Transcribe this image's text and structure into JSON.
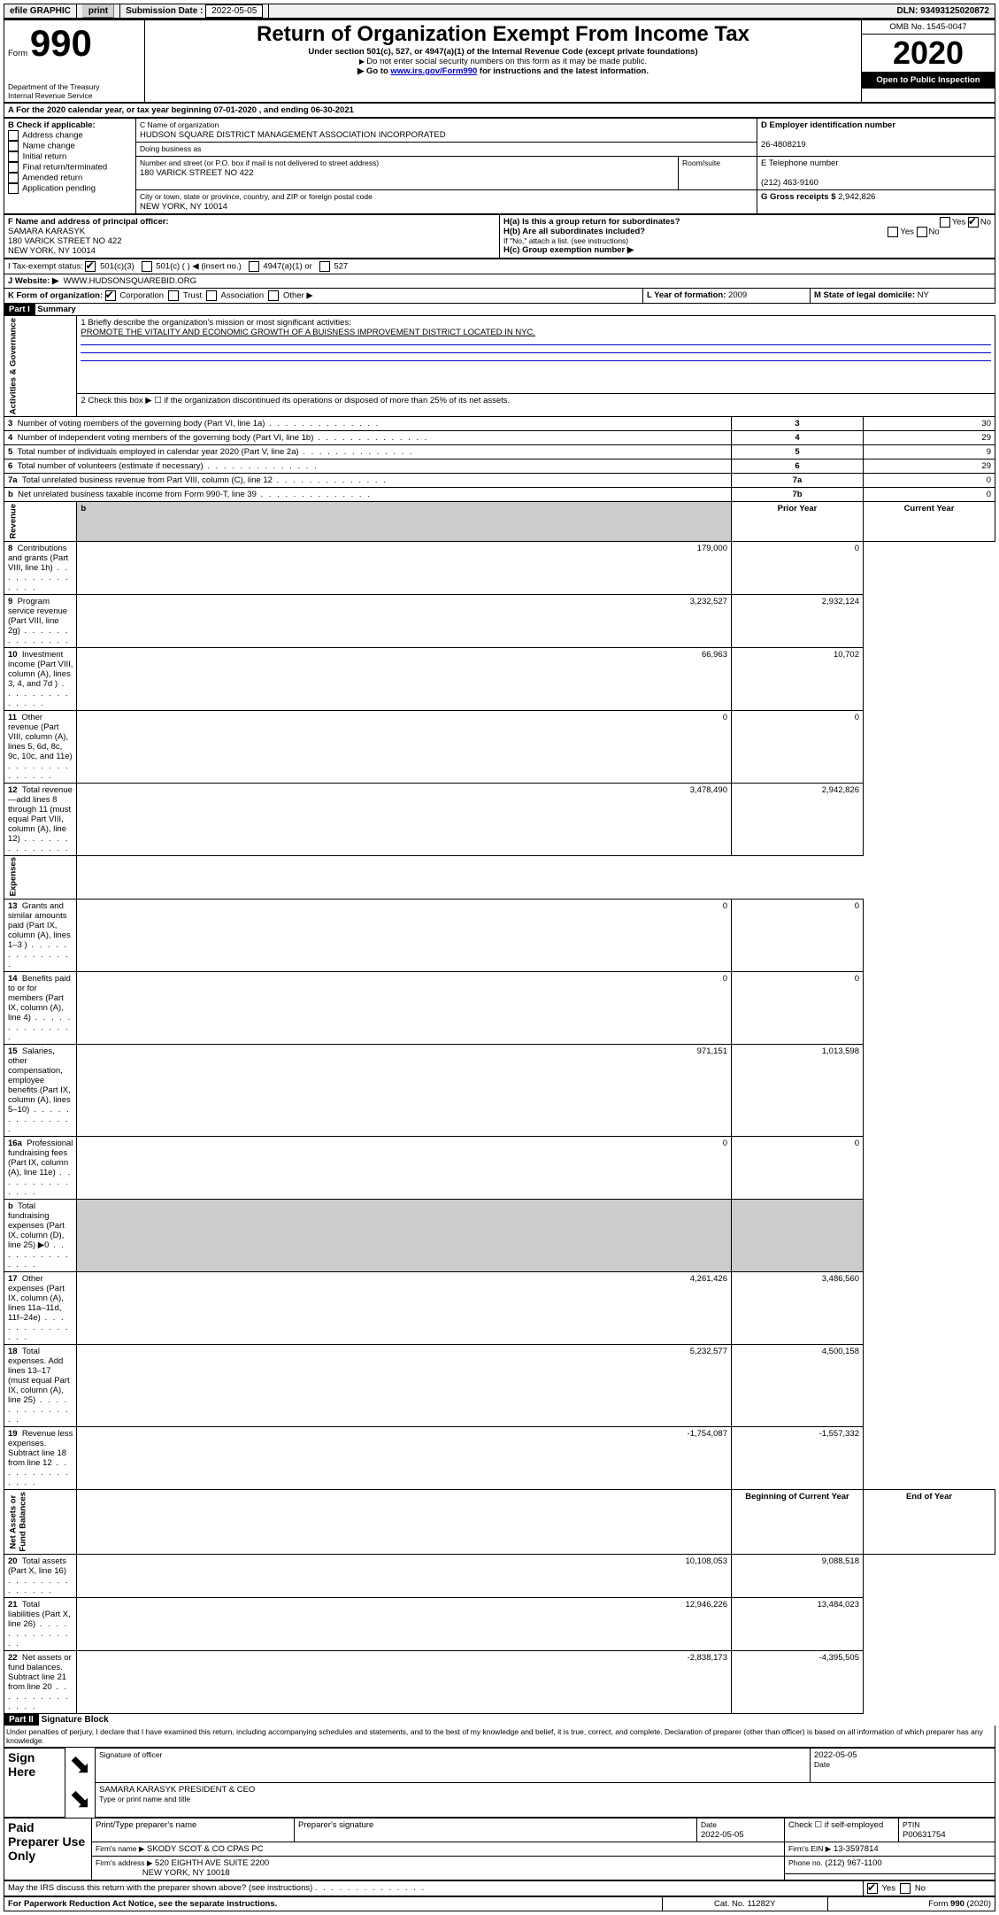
{
  "topbar": {
    "efile": "efile GRAPHIC",
    "print": "print",
    "sub_label": "Submission Date :",
    "sub_date": "2022-05-05",
    "dln": "DLN: 93493125020872"
  },
  "header": {
    "form": "Form",
    "f990": "990",
    "dept": "Department of the Treasury\nInternal Revenue Service",
    "title": "Return of Organization Exempt From Income Tax",
    "subtitle": "Under section 501(c), 527, or 4947(a)(1) of the Internal Revenue Code (except private foundations)",
    "note1": "Do not enter social security numbers on this form as it may be made public.",
    "note2": "Go to ",
    "note2_link": "www.irs.gov/Form990",
    "note2_after": " for instructions and the latest information.",
    "omb": "OMB No. 1545-0047",
    "year": "2020",
    "inspect": "Open to Public Inspection"
  },
  "line_a": "A For the 2020 calendar year, or tax year beginning 07-01-2020   , and ending 06-30-2021",
  "box_b": {
    "title": "B Check if applicable:",
    "items": [
      "Address change",
      "Name change",
      "Initial return",
      "Final return/terminated",
      "Amended return",
      "Application pending"
    ]
  },
  "box_c": {
    "label_name": "C Name of organization",
    "name": "HUDSON SQUARE DISTRICT MANAGEMENT ASSOCIATION INCORPORATED",
    "dba_label": "Doing business as",
    "street_label": "Number and street (or P.O. box if mail is not delivered to street address)",
    "room_label": "Room/suite",
    "street": "180 VARICK STREET NO 422",
    "city_label": "City or town, state or province, country, and ZIP or foreign postal code",
    "city": "NEW YORK, NY  10014"
  },
  "box_d": {
    "label": "D Employer identification number",
    "val": "26-4808219"
  },
  "box_e": {
    "label": "E Telephone number",
    "val": "(212) 463-9160"
  },
  "box_g": {
    "label": "G Gross receipts $",
    "val": "2,942,826"
  },
  "box_f": {
    "label": "F Name and address of principal officer:",
    "name": "SAMARA KARASYK",
    "addr1": "180 VARICK STREET NO 422",
    "addr2": "NEW YORK, NY  10014"
  },
  "box_h": {
    "a": "H(a)  Is this a group return for subordinates?",
    "b": "H(b)  Are all subordinates included?",
    "b_note": "If \"No,\" attach a list. (see instructions)",
    "c": "H(c)  Group exemption number ▶",
    "yes": "Yes",
    "no": "No"
  },
  "box_i": {
    "label": "I   Tax-exempt status:",
    "opts": [
      "501(c)(3)",
      "501(c) (  ) ◀ (insert no.)",
      "4947(a)(1) or",
      "527"
    ]
  },
  "box_j": {
    "label": "J   Website: ▶",
    "val": "WWW.HUDSONSQUAREBID.ORG"
  },
  "box_k": {
    "label": "K Form of organization:",
    "opts": [
      "Corporation",
      "Trust",
      "Association",
      "Other ▶"
    ]
  },
  "box_l": {
    "label": "L Year of formation:",
    "val": "2009"
  },
  "box_m": {
    "label": "M State of legal domicile:",
    "val": "NY"
  },
  "part1": {
    "title": "Part I",
    "subtitle": "Summary",
    "line1_label": "1   Briefly describe the organization's mission or most significant activities:",
    "line1_val": "PROMOTE THE VITALITY AND ECONOMIC GROWTH OF A BUISNESS IMPROVEMENT DISTRICT LOCATED IN NYC.",
    "line2": "2   Check this box ▶ ☐  if the organization discontinued its operations or disposed of more than 25% of its net assets.",
    "gov_rows": [
      {
        "n": "3",
        "t": "Number of voting members of the governing body (Part VI, line 1a)",
        "b": "3",
        "v": "30"
      },
      {
        "n": "4",
        "t": "Number of independent voting members of the governing body (Part VI, line 1b)",
        "b": "4",
        "v": "29"
      },
      {
        "n": "5",
        "t": "Total number of individuals employed in calendar year 2020 (Part V, line 2a)",
        "b": "5",
        "v": "9"
      },
      {
        "n": "6",
        "t": "Total number of volunteers (estimate if necessary)",
        "b": "6",
        "v": "29"
      },
      {
        "n": "7a",
        "t": "Total unrelated business revenue from Part VIII, column (C), line 12",
        "b": "7a",
        "v": "0"
      },
      {
        "n": "b",
        "t": "Net unrelated business taxable income from Form 990-T, line 39",
        "b": "7b",
        "v": "0"
      }
    ],
    "col_hdr": {
      "prior": "Prior Year",
      "current": "Current Year"
    },
    "rev_rows": [
      {
        "n": "8",
        "t": "Contributions and grants (Part VIII, line 1h)",
        "p": "179,000",
        "c": "0"
      },
      {
        "n": "9",
        "t": "Program service revenue (Part VIII, line 2g)",
        "p": "3,232,527",
        "c": "2,932,124"
      },
      {
        "n": "10",
        "t": "Investment income (Part VIII, column (A), lines 3, 4, and 7d )",
        "p": "66,963",
        "c": "10,702"
      },
      {
        "n": "11",
        "t": "Other revenue (Part VIII, column (A), lines 5, 6d, 8c, 9c, 10c, and 11e)",
        "p": "0",
        "c": "0"
      },
      {
        "n": "12",
        "t": "Total revenue—add lines 8 through 11 (must equal Part VIII, column (A), line 12)",
        "p": "3,478,490",
        "c": "2,942,826"
      }
    ],
    "exp_rows": [
      {
        "n": "13",
        "t": "Grants and similar amounts paid (Part IX, column (A), lines 1–3 )",
        "p": "0",
        "c": "0"
      },
      {
        "n": "14",
        "t": "Benefits paid to or for members (Part IX, column (A), line 4)",
        "p": "0",
        "c": "0"
      },
      {
        "n": "15",
        "t": "Salaries, other compensation, employee benefits (Part IX, column (A), lines 5–10)",
        "p": "971,151",
        "c": "1,013,598"
      },
      {
        "n": "16a",
        "t": "Professional fundraising fees (Part IX, column (A), line 11e)",
        "p": "0",
        "c": "0"
      },
      {
        "n": "b",
        "t": "Total fundraising expenses (Part IX, column (D), line 25) ▶0",
        "p": "",
        "c": "",
        "gray": true
      },
      {
        "n": "17",
        "t": "Other expenses (Part IX, column (A), lines 11a–11d, 11f–24e)",
        "p": "4,261,426",
        "c": "3,486,560"
      },
      {
        "n": "18",
        "t": "Total expenses. Add lines 13–17 (must equal Part IX, column (A), line 25)",
        "p": "5,232,577",
        "c": "4,500,158"
      },
      {
        "n": "19",
        "t": "Revenue less expenses. Subtract line 18 from line 12",
        "p": "-1,754,087",
        "c": "-1,557,332"
      }
    ],
    "na_hdr": {
      "beg": "Beginning of Current Year",
      "end": "End of Year"
    },
    "na_rows": [
      {
        "n": "20",
        "t": "Total assets (Part X, line 16)",
        "p": "10,108,053",
        "c": "9,088,518"
      },
      {
        "n": "21",
        "t": "Total liabilities (Part X, line 26)",
        "p": "12,946,226",
        "c": "13,484,023"
      },
      {
        "n": "22",
        "t": "Net assets or fund balances. Subtract line 21 from line 20",
        "p": "-2,838,173",
        "c": "-4,395,505"
      }
    ]
  },
  "part2": {
    "title": "Part II",
    "subtitle": "Signature Block",
    "perjury": "Under penalties of perjury, I declare that I have examined this return, including accompanying schedules and statements, and to the best of my knowledge and belief, it is true, correct, and complete. Declaration of preparer (other than officer) is based on all information of which preparer has any knowledge.",
    "sign_here": "Sign Here",
    "sig_officer": "Signature of officer",
    "sig_date_label": "Date",
    "sig_date": "2022-05-05",
    "officer_name": "SAMARA KARASYK  PRESIDENT & CEO",
    "type_name": "Type or print name and title",
    "paid": "Paid Preparer Use Only",
    "pt_name_label": "Print/Type preparer's name",
    "pt_sig_label": "Preparer's signature",
    "pt_date_label": "Date",
    "pt_date": "2022-05-05",
    "pt_check": "Check ☐ if self-employed",
    "ptin_label": "PTIN",
    "ptin": "P00631754",
    "firm_name_label": "Firm's name   ▶",
    "firm_name": "SKODY SCOT & CO CPAS PC",
    "firm_ein_label": "Firm's EIN ▶",
    "firm_ein": "13-3597814",
    "firm_addr_label": "Firm's address ▶",
    "firm_addr1": "520 EIGHTH AVE SUITE 2200",
    "firm_addr2": "NEW YORK, NY  10018",
    "phone_label": "Phone no.",
    "phone": "(212) 967-1100",
    "discuss": "May the IRS discuss this return with the preparer shown above? (see instructions)",
    "yes": "Yes",
    "no": "No"
  },
  "footer": {
    "pra": "For Paperwork Reduction Act Notice, see the separate instructions.",
    "cat": "Cat. No. 11282Y",
    "form": "Form 990 (2020)"
  }
}
